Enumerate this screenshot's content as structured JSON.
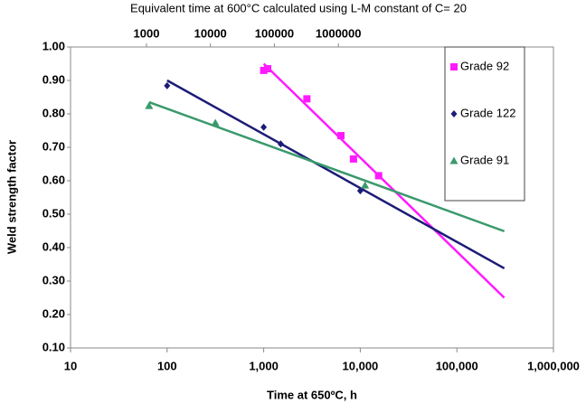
{
  "chart_data": {
    "type": "scatter",
    "title": "Equivalent time at 600°C calculated using L-M constant of C= 20",
    "x_label": "Time at 650ºC, h",
    "y_label": "Weld strength factor",
    "x_log": true,
    "x2_log": true,
    "xlim": [
      10,
      1000000
    ],
    "xticks": [
      {
        "value": 10,
        "label": "10"
      },
      {
        "value": 100,
        "label": "100"
      },
      {
        "value": 1000,
        "label": "1,000"
      },
      {
        "value": 10000,
        "label": "10,000"
      },
      {
        "value": 100000,
        "label": "100,000"
      },
      {
        "value": 1000000,
        "label": "1,000,000"
      }
    ],
    "x2lim": [
      65,
      2300000000
    ],
    "x2ticks": [
      1000,
      10000,
      100000,
      1000000
    ],
    "ylim": [
      0.1,
      1.0
    ],
    "yticks": [
      {
        "value": 0.1,
        "label": "0.10"
      },
      {
        "value": 0.2,
        "label": "0.20"
      },
      {
        "value": 0.3,
        "label": "0.30"
      },
      {
        "value": 0.4,
        "label": "0.40"
      },
      {
        "value": 0.5,
        "label": "0.50"
      },
      {
        "value": 0.6,
        "label": "0.60"
      },
      {
        "value": 0.7,
        "label": "0.70"
      },
      {
        "value": 0.8,
        "label": "0.80"
      },
      {
        "value": 0.9,
        "label": "0.90"
      },
      {
        "value": 1.0,
        "label": "1.00"
      }
    ],
    "grid": false,
    "legend_position": "upper right",
    "series": [
      {
        "name": "Grade 92",
        "color": "#ff1aff",
        "marker": "square",
        "x": [
          1000,
          1100,
          2800,
          6300,
          8500,
          15500
        ],
        "values": [
          0.93,
          0.935,
          0.845,
          0.735,
          0.665,
          0.615
        ],
        "trend_x": [
          1000,
          310000
        ],
        "trend_y": [
          0.95,
          0.25
        ]
      },
      {
        "name": "Grade 122",
        "color": "#1c1c78",
        "marker": "diamond",
        "x": [
          100,
          1000,
          1500,
          10000
        ],
        "values": [
          0.884,
          0.76,
          0.71,
          0.57
        ],
        "trend_x": [
          100,
          310000
        ],
        "trend_y": [
          0.9,
          0.338
        ]
      },
      {
        "name": "Grade 91",
        "color": "#3a9a6c",
        "marker": "triangle",
        "x": [
          65,
          316,
          11200
        ],
        "values": [
          0.824,
          0.773,
          0.586
        ],
        "trend_x": [
          65,
          310000
        ],
        "trend_y": [
          0.835,
          0.449
        ]
      }
    ]
  }
}
